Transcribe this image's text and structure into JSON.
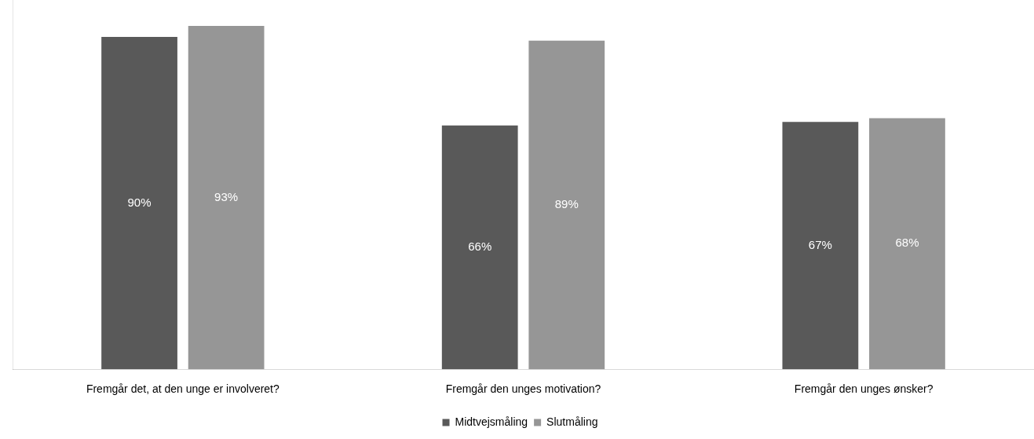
{
  "chart_data": {
    "type": "bar",
    "categories": [
      "Fremgår det, at den unge er involveret?",
      "Fremgår den unges motivation?",
      "Fremgår den unges ønsker?"
    ],
    "series": [
      {
        "name": "Midtvejsmåling",
        "color": "#595959",
        "values": [
          90,
          66,
          67
        ],
        "value_labels": [
          "90%",
          "66%",
          "67%"
        ]
      },
      {
        "name": "Slutmåling",
        "color": "#969696",
        "values": [
          93,
          89,
          68
        ],
        "value_labels": [
          "93%",
          "89%",
          "68%"
        ]
      }
    ],
    "relative": false,
    "grid": false,
    "legend": "bottom",
    "tick_labels": "x"
  }
}
